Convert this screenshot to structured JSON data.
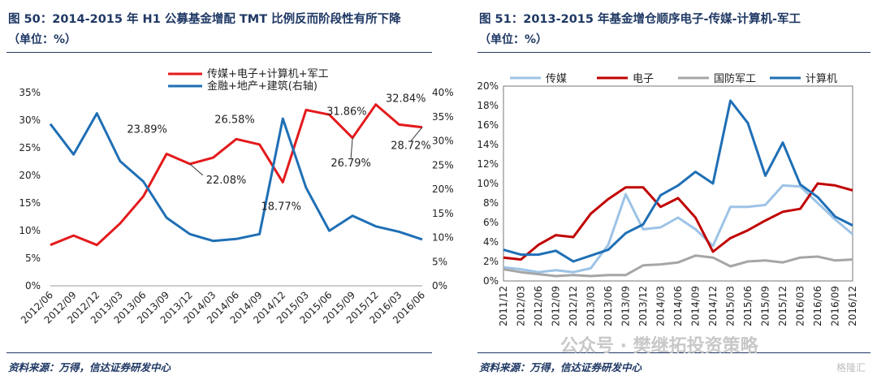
{
  "left": {
    "title": "图 50：2014-2015 年 H1 公募基金增配 TMT 比例反而阶段性有所下降",
    "unit": "（单位：%）",
    "source": "资料来源：万得，信达证券研发中心"
  },
  "right": {
    "title": "图 51：2013-2015 年基金增仓顺序电子-传媒-计算机-军工",
    "unit": "（单位：%）",
    "source": "资料来源：万得，信达证券研发中心"
  },
  "watermark": {
    "text": "公众号 · 樊继拓投资策略",
    "logo": "格隆汇"
  },
  "chart_data": [
    {
      "type": "line",
      "categories": [
        "2012/06",
        "2012/09",
        "2012/12",
        "2013/03",
        "2013/06",
        "2013/09",
        "2013/12",
        "2014/03",
        "2014/06",
        "2014/09",
        "2014/12",
        "2015/03",
        "2015/06",
        "2015/09",
        "2015/12",
        "2016/03",
        "2016/06"
      ],
      "y_left": {
        "ticks": [
          "0%",
          "5%",
          "10%",
          "15%",
          "20%",
          "25%",
          "30%",
          "35%"
        ],
        "range": [
          0,
          35
        ]
      },
      "y_right": {
        "ticks": [
          "0%",
          "5%",
          "10%",
          "15%",
          "20%",
          "25%",
          "30%",
          "35%",
          "40%"
        ],
        "range": [
          0,
          40
        ]
      },
      "legend_position": "top-center",
      "series": [
        {
          "name": "传媒+电子+计算机+军工",
          "axis": "left",
          "color": "#e31a1c",
          "values": [
            7.4,
            9.1,
            7.4,
            11.3,
            16.2,
            23.89,
            22.08,
            23.2,
            26.58,
            25.6,
            18.77,
            31.86,
            31.0,
            26.79,
            32.84,
            29.2,
            28.72
          ]
        },
        {
          "name": "金融+地产+建筑(右轴)",
          "axis": "right",
          "color": "#1f6fb5",
          "values": [
            33.5,
            27.2,
            35.7,
            25.8,
            21.6,
            14.1,
            10.7,
            9.3,
            9.7,
            10.7,
            34.6,
            20.3,
            11.4,
            14.5,
            12.3,
            11.2,
            9.6
          ]
        }
      ],
      "annotations": [
        "23.89%",
        "26.58%",
        "22.08%",
        "18.77%",
        "31.86%",
        "26.79%",
        "32.84%",
        "28.72%"
      ]
    },
    {
      "type": "line",
      "categories": [
        "2011/12",
        "2012/03",
        "2012/06",
        "2012/09",
        "2012/12",
        "2013/03",
        "2013/06",
        "2013/09",
        "2013/12",
        "2014/03",
        "2014/06",
        "2014/09",
        "2014/12",
        "2015/03",
        "2015/06",
        "2015/09",
        "2015/12",
        "2016/03",
        "2016/06",
        "2016/09",
        "2016/12"
      ],
      "y": {
        "ticks": [
          "0%",
          "2%",
          "4%",
          "6%",
          "8%",
          "10%",
          "12%",
          "14%",
          "16%",
          "18%",
          "20%"
        ],
        "range": [
          0,
          20
        ]
      },
      "legend_position": "top",
      "series": [
        {
          "name": "传媒",
          "color": "#9dc3e6",
          "values": [
            1.4,
            1.2,
            0.9,
            1.1,
            0.9,
            1.3,
            3.7,
            8.9,
            5.3,
            5.5,
            6.5,
            5.3,
            3.6,
            7.6,
            7.6,
            7.8,
            9.8,
            9.7,
            8.0,
            6.3,
            4.8
          ]
        },
        {
          "name": "电子",
          "color": "#c00000",
          "values": [
            2.4,
            2.2,
            3.7,
            4.7,
            4.5,
            6.9,
            8.4,
            9.6,
            9.6,
            7.6,
            8.5,
            6.5,
            3.0,
            4.4,
            5.2,
            6.2,
            7.1,
            7.4,
            10.0,
            9.8,
            9.3
          ]
        },
        {
          "name": "国防军工",
          "color": "#a6a6a6",
          "values": [
            1.2,
            0.9,
            0.7,
            0.5,
            0.6,
            0.5,
            0.6,
            0.6,
            1.6,
            1.7,
            1.9,
            2.6,
            2.4,
            1.5,
            2.0,
            2.1,
            1.9,
            2.4,
            2.5,
            2.1,
            2.2
          ]
        },
        {
          "name": "计算机",
          "color": "#1f6fb5",
          "values": [
            3.2,
            2.7,
            2.7,
            3.1,
            2.0,
            2.6,
            3.2,
            4.9,
            5.8,
            8.8,
            9.8,
            11.2,
            10.0,
            18.5,
            16.2,
            10.8,
            14.2,
            9.9,
            8.6,
            6.6,
            5.7
          ]
        }
      ]
    }
  ]
}
